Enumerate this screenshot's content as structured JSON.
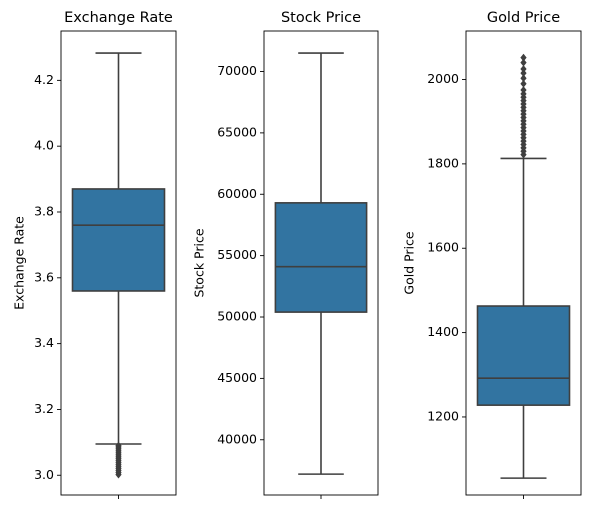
{
  "chart_data": [
    {
      "type": "box",
      "title": "Exchange Rate",
      "xlabel": "",
      "ylabel": "Exchange Rate",
      "ylim": [
        2.94,
        4.35
      ],
      "yticks": [
        3.0,
        3.2,
        3.4,
        3.6,
        3.8,
        4.0,
        4.2
      ],
      "ytick_labels": [
        "3.0",
        "3.2",
        "3.4",
        "3.6",
        "3.8",
        "4.0",
        "4.2"
      ],
      "xticks": [
        ""
      ],
      "box": {
        "whisker_low": 3.095,
        "q1": 3.56,
        "median": 3.76,
        "q3": 3.87,
        "whisker_high": 4.283
      },
      "outliers": [
        3.002,
        3.008,
        3.014,
        3.02,
        3.026,
        3.032,
        3.038,
        3.044,
        3.05,
        3.056,
        3.062,
        3.068,
        3.074,
        3.08,
        3.086,
        3.09
      ]
    },
    {
      "type": "box",
      "title": "Stock Price",
      "xlabel": "",
      "ylabel": "Stock Price",
      "ylim": [
        35500,
        73300
      ],
      "yticks": [
        40000,
        45000,
        50000,
        55000,
        60000,
        65000,
        70000
      ],
      "ytick_labels": [
        "40000",
        "45000",
        "50000",
        "55000",
        "60000",
        "65000",
        "70000"
      ],
      "xticks": [
        ""
      ],
      "box": {
        "whisker_low": 37200,
        "q1": 50400,
        "median": 54100,
        "q3": 59300,
        "whisker_high": 71500
      },
      "outliers": []
    },
    {
      "type": "box",
      "title": "Gold Price",
      "xlabel": "",
      "ylabel": "Gold Price",
      "ylim": [
        1015,
        2115
      ],
      "yticks": [
        1200,
        1400,
        1600,
        1800,
        2000
      ],
      "ytick_labels": [
        "1200",
        "1400",
        "1600",
        "1800",
        "2000"
      ],
      "xticks": [
        ""
      ],
      "box": {
        "whisker_low": 1055,
        "q1": 1228,
        "median": 1292,
        "q3": 1463,
        "whisker_high": 1813
      },
      "outliers": [
        1822,
        1830,
        1838,
        1846,
        1854,
        1862,
        1870,
        1878,
        1886,
        1894,
        1902,
        1910,
        1918,
        1926,
        1934,
        1942,
        1950,
        1958,
        1966,
        1975,
        1990,
        2003,
        2015,
        2025,
        2040,
        2052
      ]
    }
  ],
  "colors": {
    "box_fill": "#3274a1",
    "line": "#3f3f3f",
    "frame": "#000000"
  }
}
